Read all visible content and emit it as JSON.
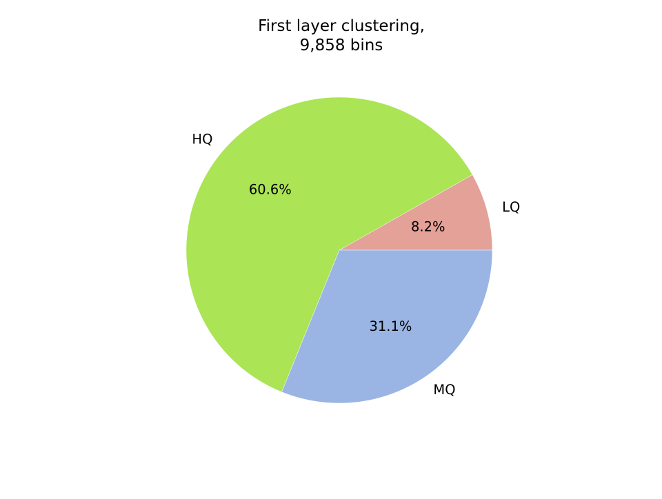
{
  "chart_data": {
    "type": "pie",
    "title_lines": [
      "First layer clustering,",
      "9,858 bins"
    ],
    "start_angle_deg": 0,
    "direction": "counterclockwise",
    "slices": [
      {
        "label": "LQ",
        "value": 8.2,
        "pct_label": "8.2%",
        "color": "#e3a198"
      },
      {
        "label": "HQ",
        "value": 60.6,
        "pct_label": "60.6%",
        "color": "#abe454"
      },
      {
        "label": "MQ",
        "value": 31.1,
        "pct_label": "31.1%",
        "color": "#9ab5e3"
      }
    ]
  }
}
